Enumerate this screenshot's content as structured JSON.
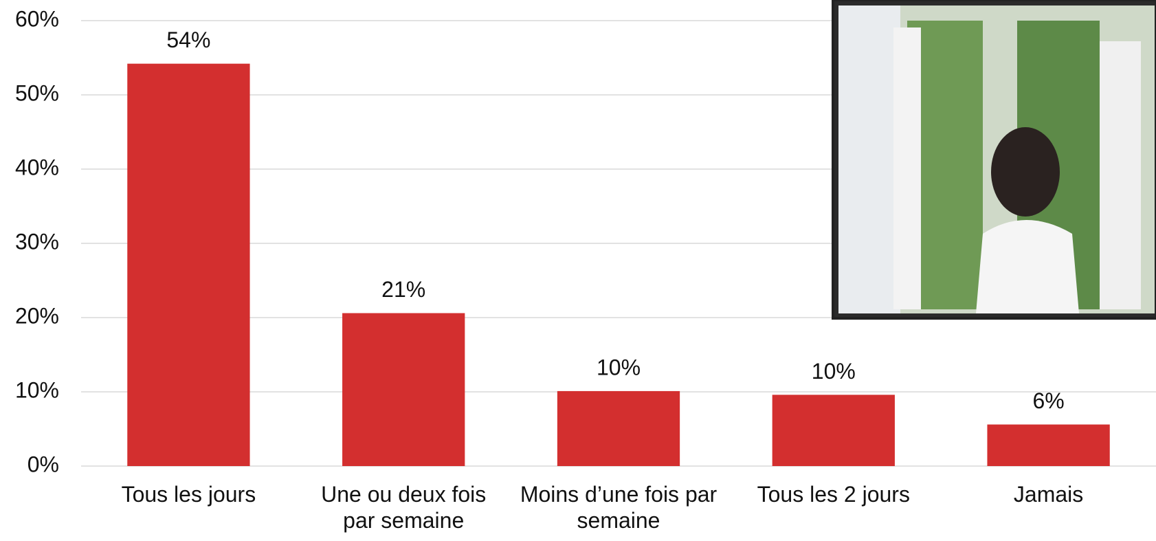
{
  "chart_data": {
    "type": "bar",
    "categories": [
      "Tous les jours",
      "Une ou deux fois par semaine",
      "Moins d’une fois par semaine",
      "Tous les 2 jours",
      "Jamais"
    ],
    "values": [
      54.2,
      20.6,
      10.1,
      9.6,
      5.6
    ],
    "value_labels": [
      "54%",
      "21%",
      "10%",
      "10%",
      "6%"
    ],
    "color": "#d32f2f",
    "ylim": [
      0,
      60
    ],
    "yticks": [
      {
        "value": 0,
        "label": "0%"
      },
      {
        "value": 10,
        "label": "10%"
      },
      {
        "value": 20,
        "label": "20%"
      },
      {
        "value": 30,
        "label": "30%"
      },
      {
        "value": 40,
        "label": "40%"
      },
      {
        "value": 50,
        "label": "50%"
      },
      {
        "value": 60,
        "label": "60%"
      }
    ],
    "grid": true
  }
}
